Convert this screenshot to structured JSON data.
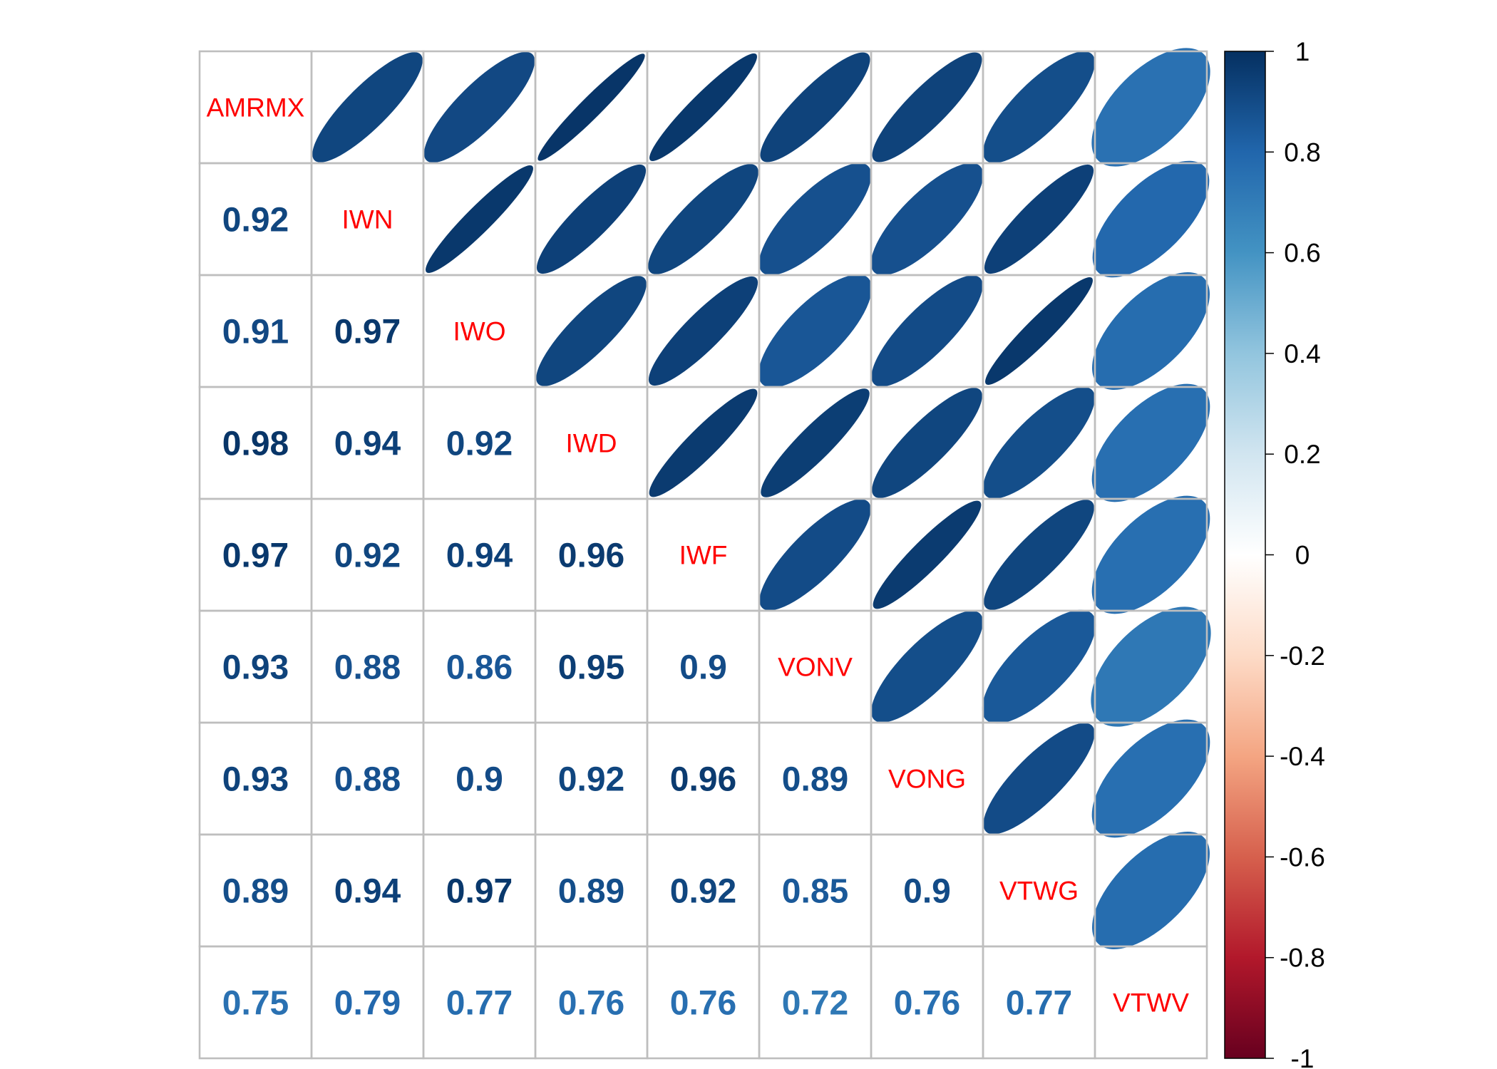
{
  "chart_data": {
    "type": "heatmap",
    "title": "",
    "variables": [
      "AMRMX",
      "IWN",
      "IWO",
      "IWD",
      "IWF",
      "VONV",
      "VONG",
      "VTWG",
      "VTWV"
    ],
    "lower_triangle": "number",
    "upper_triangle": "ellipse",
    "diagonal": "variable name",
    "matrix": [
      [
        1.0,
        0.92,
        0.91,
        0.98,
        0.97,
        0.93,
        0.93,
        0.89,
        0.75
      ],
      [
        0.92,
        1.0,
        0.97,
        0.94,
        0.92,
        0.88,
        0.88,
        0.94,
        0.79
      ],
      [
        0.91,
        0.97,
        1.0,
        0.92,
        0.94,
        0.86,
        0.9,
        0.97,
        0.77
      ],
      [
        0.98,
        0.94,
        0.92,
        1.0,
        0.96,
        0.95,
        0.92,
        0.89,
        0.76
      ],
      [
        0.97,
        0.92,
        0.94,
        0.96,
        1.0,
        0.9,
        0.96,
        0.92,
        0.76
      ],
      [
        0.93,
        0.88,
        0.86,
        0.95,
        0.9,
        1.0,
        0.89,
        0.85,
        0.72
      ],
      [
        0.93,
        0.88,
        0.9,
        0.92,
        0.96,
        0.89,
        1.0,
        0.9,
        0.76
      ],
      [
        0.89,
        0.94,
        0.97,
        0.89,
        0.92,
        0.85,
        0.9,
        1.0,
        0.77
      ],
      [
        0.75,
        0.79,
        0.77,
        0.76,
        0.76,
        0.72,
        0.76,
        0.77,
        1.0
      ]
    ],
    "colorbar": {
      "range": [
        -1,
        1
      ],
      "ticks": [
        1,
        0.8,
        0.6,
        0.4,
        0.2,
        0,
        -0.2,
        -0.4,
        -0.6,
        -0.8,
        -1
      ],
      "tick_labels": [
        "1",
        "0.8",
        "0.6",
        "0.4",
        "0.2",
        "0",
        "-0.2",
        "-0.4",
        "-0.6",
        "-0.8",
        "-1"
      ],
      "placement": "right",
      "colors": [
        "#67001F",
        "#B2182B",
        "#D6604D",
        "#F4A582",
        "#FDDBC7",
        "#FFFFFF",
        "#D1E5F0",
        "#92C5DE",
        "#4393C3",
        "#2166AC",
        "#053061"
      ]
    },
    "diagonal_label_color": "#FF0000",
    "grid": true
  }
}
